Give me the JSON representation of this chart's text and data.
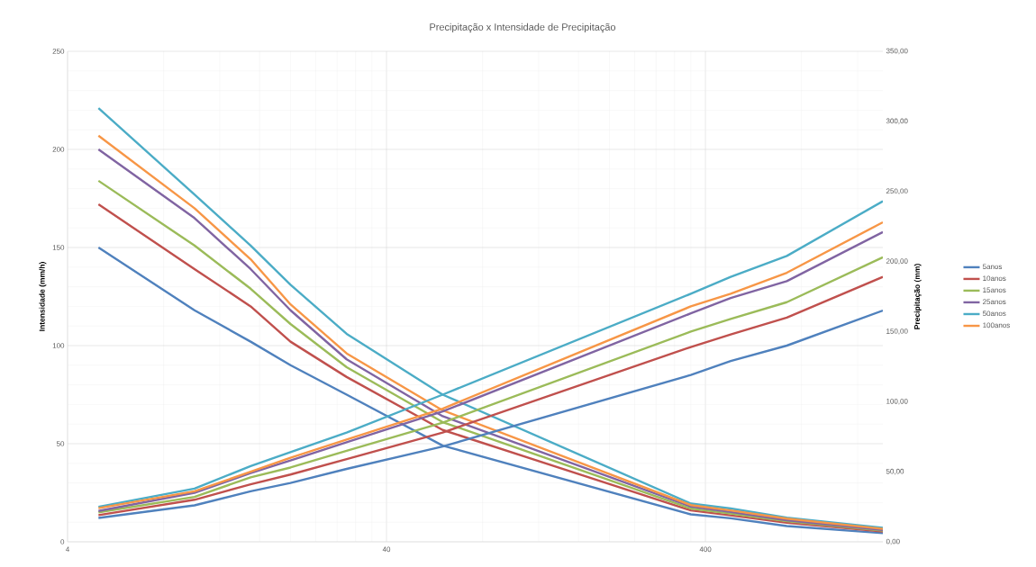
{
  "chart_data": {
    "type": "line",
    "title": "Precipitação x Intensidade de Precipitação",
    "ylabel": "Intensidade (mm/h)",
    "y2label": "Precipitação (mm)",
    "x": [
      5,
      10,
      15,
      20,
      30,
      60,
      360,
      480,
      720,
      1440
    ],
    "log": "x",
    "xlim": [
      4,
      1440
    ],
    "xticks": [
      4,
      40,
      400
    ],
    "ylim": [
      0,
      250
    ],
    "yticks": [
      0,
      50,
      100,
      150,
      200,
      250
    ],
    "y2lim": [
      0,
      350
    ],
    "y2ticks": [
      {
        "value": 0,
        "label": "0,00"
      },
      {
        "value": 50,
        "label": "50,00"
      },
      {
        "value": 100,
        "label": "100,00"
      },
      {
        "value": 150,
        "label": "150,00"
      },
      {
        "value": 200,
        "label": "200,00"
      },
      {
        "value": 250,
        "label": "250,00"
      },
      {
        "value": 300,
        "label": "300,00"
      },
      {
        "value": 350,
        "label": "350,00"
      }
    ],
    "grid": true,
    "legend": "right",
    "series": [
      {
        "name": "5anos",
        "color": "#4f81bd",
        "values": [
          150,
          118,
          102,
          90,
          75,
          49,
          14,
          12,
          8,
          4.4
        ]
      },
      {
        "name": "10anos",
        "color": "#c0504d",
        "values": [
          172,
          139,
          120,
          102,
          84,
          57,
          16,
          13.5,
          9.7,
          5.2
        ]
      },
      {
        "name": "15anos",
        "color": "#9bbb59",
        "values": [
          184,
          151,
          129,
          111,
          89,
          61,
          17,
          14.4,
          10.5,
          5.7
        ]
      },
      {
        "name": "25anos",
        "color": "#8064a2",
        "values": [
          200,
          165,
          139,
          118,
          93,
          64,
          18,
          15.2,
          11,
          6.1
        ]
      },
      {
        "name": "50anos",
        "color": "#4bacc6",
        "values": [
          221,
          177,
          151,
          131,
          106,
          75,
          19.5,
          17,
          12.3,
          7.1
        ]
      },
      {
        "name": "100anos",
        "color": "#f79646",
        "values": [
          207,
          170,
          144,
          121,
          96,
          67,
          18.7,
          16,
          11.8,
          6.6
        ]
      },
      {
        "color": "#4f81bd",
        "axis": "y2",
        "values": [
          17,
          26,
          36,
          42,
          52,
          68,
          119,
          129,
          140,
          165
        ]
      },
      {
        "color": "#c0504d",
        "axis": "y2",
        "values": [
          19,
          30,
          41,
          48,
          59,
          78,
          139,
          148,
          160,
          189
        ]
      },
      {
        "color": "#9bbb59",
        "axis": "y2",
        "values": [
          21,
          32,
          46,
          53,
          65,
          85,
          150,
          159,
          171,
          203
        ]
      },
      {
        "color": "#8064a2",
        "axis": "y2",
        "values": [
          22,
          35,
          49,
          58,
          71,
          93,
          163,
          174,
          186,
          221
        ]
      },
      {
        "color": "#4bacc6",
        "axis": "y2",
        "values": [
          25,
          38,
          54,
          64,
          78,
          105,
          177,
          189,
          204,
          243
        ]
      },
      {
        "color": "#f79646",
        "axis": "y2",
        "values": [
          24,
          36,
          50,
          60,
          73,
          95,
          168,
          177,
          192,
          228
        ]
      }
    ]
  }
}
